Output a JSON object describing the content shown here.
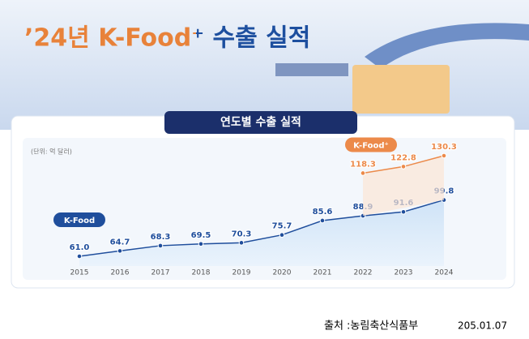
{
  "chart_data": {
    "type": "line",
    "title": "’24년 K-Food⁺ 수출 실적",
    "subtitle": "연도별 수출 실적",
    "unit_note": "(단위: 억 달러)",
    "categories": [
      "2015",
      "2016",
      "2017",
      "2018",
      "2019",
      "2020",
      "2021",
      "2022",
      "2023",
      "2024"
    ],
    "series": [
      {
        "name": "K-Food",
        "color": "#1f4e9c",
        "values": [
          61.0,
          64.7,
          68.3,
          69.5,
          70.3,
          75.7,
          85.6,
          88.9,
          91.6,
          99.8
        ],
        "value_labels": [
          "61.0",
          "64.7",
          "68.3",
          "69.5",
          "70.3",
          "75.7",
          "85.6",
          "88.9",
          "91.6",
          "99.8"
        ]
      },
      {
        "name": "K-Food⁺",
        "color": "#ec8a4a",
        "values": [
          null,
          null,
          null,
          null,
          null,
          null,
          null,
          118.3,
          122.8,
          130.3
        ],
        "value_labels": [
          null,
          null,
          null,
          null,
          null,
          null,
          null,
          "118.3",
          "122.8",
          "130.3"
        ]
      }
    ],
    "source": "출처 :농림축산식품부",
    "date": "205.01.07"
  }
}
